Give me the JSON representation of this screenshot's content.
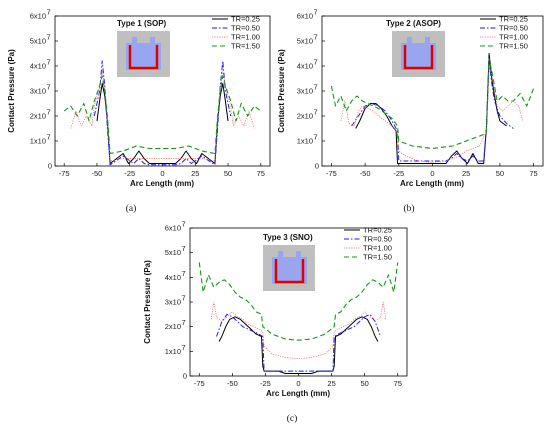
{
  "colors": {
    "TR=0.25": "#000000",
    "TR=0.50": "#1a1aff",
    "TR=1.00": "#ff5a5a",
    "TR=1.50": "#119911"
  },
  "chart_data": [
    {
      "type": "line",
      "title": "Type 1 (SOP)",
      "caption": "(a)",
      "xlabel": "Arc Length (mm)",
      "ylabel": "Contact Pressure (Pa)",
      "xlim": [
        -82,
        82
      ],
      "ylim": [
        0,
        60000000.0
      ],
      "xticks": [
        -75,
        -50,
        -25,
        0,
        25,
        50,
        75
      ],
      "yticks": [
        0,
        10000000.0,
        20000000.0,
        30000000.0,
        40000000.0,
        50000000.0,
        60000000.0
      ],
      "ytick_labels": [
        "0",
        "1x10",
        "2x10",
        "3x10",
        "4x10",
        "5x10",
        "6x10"
      ],
      "ytick_exponent": "7",
      "legend_position": "top-right",
      "series": [
        {
          "name": "TR=0.25",
          "x": [
            -50,
            -48,
            -46,
            -44,
            -42,
            -40,
            -30,
            -26,
            -22,
            -18,
            -14,
            -10,
            -6,
            0,
            6,
            10,
            14,
            18,
            22,
            26,
            30,
            40,
            42,
            44,
            46,
            48,
            50
          ],
          "y": [
            18000000.0,
            26000000.0,
            33000000.0,
            28000000.0,
            18000000.0,
            1000000.0,
            5000000.0,
            1000000.0,
            3000000.0,
            6000000.0,
            3000000.0,
            1000000.0,
            1000000.0,
            1000000.0,
            1000000.0,
            1000000.0,
            3000000.0,
            6000000.0,
            3000000.0,
            1000000.0,
            5000000.0,
            1000000.0,
            18000000.0,
            28000000.0,
            33000000.0,
            26000000.0,
            18000000.0
          ]
        },
        {
          "name": "TR=0.50",
          "x": [
            -52,
            -48,
            -46,
            -44,
            -42,
            -40,
            -30,
            -22,
            -18,
            -14,
            -10,
            0,
            10,
            14,
            18,
            22,
            30,
            40,
            42,
            44,
            46,
            48,
            52
          ],
          "y": [
            20000000.0,
            30000000.0,
            42000000.0,
            32000000.0,
            15000000.0,
            500000.0,
            4000000.0,
            1000000.0,
            3000000.0,
            1000000.0,
            500000.0,
            500000.0,
            500000.0,
            1000000.0,
            3000000.0,
            1000000.0,
            4000000.0,
            500000.0,
            15000000.0,
            32000000.0,
            42000000.0,
            30000000.0,
            20000000.0
          ]
        },
        {
          "name": "TR=1.00",
          "x": [
            -70,
            -66,
            -62,
            -58,
            -54,
            -52,
            -48,
            -46,
            -44,
            -42,
            -40,
            -30,
            -20,
            -10,
            0,
            10,
            20,
            30,
            40,
            42,
            44,
            46,
            48,
            52,
            54,
            58,
            62,
            66,
            70
          ],
          "y": [
            15000000.0,
            22000000.0,
            16000000.0,
            20000000.0,
            16000000.0,
            24000000.0,
            32000000.0,
            38000000.0,
            31000000.0,
            18000000.0,
            2000000.0,
            3000000.0,
            3000000.0,
            3000000.0,
            3000000.0,
            3000000.0,
            3000000.0,
            3000000.0,
            2000000.0,
            18000000.0,
            31000000.0,
            38000000.0,
            32000000.0,
            24000000.0,
            16000000.0,
            20000000.0,
            16000000.0,
            22000000.0,
            15000000.0
          ]
        },
        {
          "name": "TR=1.50",
          "x": [
            -75,
            -70,
            -65,
            -60,
            -56,
            -52,
            -48,
            -46,
            -44,
            -42,
            -40,
            -30,
            -20,
            -10,
            0,
            10,
            20,
            30,
            40,
            42,
            44,
            46,
            48,
            52,
            56,
            60,
            65,
            70,
            75
          ],
          "y": [
            22000000.0,
            24000000.0,
            20000000.0,
            25000000.0,
            18000000.0,
            26000000.0,
            32000000.0,
            36000000.0,
            30000000.0,
            20000000.0,
            5000000.0,
            6000000.0,
            8000000.0,
            7000000.0,
            7000000.0,
            7000000.0,
            8000000.0,
            6000000.0,
            5000000.0,
            20000000.0,
            30000000.0,
            36000000.0,
            32000000.0,
            26000000.0,
            18000000.0,
            25000000.0,
            20000000.0,
            24000000.0,
            22000000.0
          ]
        }
      ]
    },
    {
      "type": "line",
      "title": "Type 2 (ASOP)",
      "caption": "(b)",
      "xlabel": "Arc Length (mm)",
      "ylabel": "Contact Pressure (Pa)",
      "xlim": [
        -82,
        82
      ],
      "ylim": [
        0,
        60000000.0
      ],
      "xticks": [
        -75,
        -50,
        -25,
        0,
        25,
        50,
        75
      ],
      "yticks": [
        0,
        10000000.0,
        20000000.0,
        30000000.0,
        40000000.0,
        50000000.0,
        60000000.0
      ],
      "ytick_labels": [
        "0",
        "1x10",
        "2x10",
        "3x10",
        "4x10",
        "5x10",
        "6x10"
      ],
      "ytick_exponent": "7",
      "legend_position": "top-right",
      "series": [
        {
          "name": "TR=0.25",
          "x": [
            -57,
            -54,
            -50,
            -46,
            -42,
            -38,
            -34,
            -30,
            -27,
            -26,
            -10,
            0,
            10,
            14,
            18,
            22,
            26,
            30,
            34,
            38,
            40,
            42,
            44,
            46,
            48,
            50,
            55
          ],
          "y": [
            15000000.0,
            18000000.0,
            23000000.0,
            25000000.0,
            25000000.0,
            23000000.0,
            20000000.0,
            16000000.0,
            14000000.0,
            1000000.0,
            1000000.0,
            1000000.0,
            1000000.0,
            4000000.0,
            6000000.0,
            3000000.0,
            1000000.0,
            5000000.0,
            1000000.0,
            1000000.0,
            15000000.0,
            45000000.0,
            35000000.0,
            28000000.0,
            22000000.0,
            18000000.0,
            16000000.0
          ]
        },
        {
          "name": "TR=0.50",
          "x": [
            -60,
            -55,
            -50,
            -45,
            -40,
            -35,
            -30,
            -26,
            -25,
            -10,
            0,
            10,
            14,
            18,
            22,
            26,
            30,
            34,
            38,
            40,
            42,
            44,
            46,
            50,
            55,
            60
          ],
          "y": [
            16000000.0,
            20000000.0,
            24000000.0,
            25000000.0,
            24000000.0,
            22000000.0,
            18000000.0,
            14000000.0,
            2000000.0,
            2000000.0,
            2000000.0,
            2000000.0,
            3000000.0,
            5000000.0,
            3000000.0,
            2000000.0,
            4000000.0,
            2000000.0,
            2000000.0,
            15000000.0,
            42000000.0,
            33000000.0,
            26000000.0,
            20000000.0,
            17000000.0,
            15000000.0
          ]
        },
        {
          "name": "TR=1.00",
          "x": [
            -68,
            -65,
            -62,
            -58,
            -55,
            -52,
            -48,
            -44,
            -40,
            -35,
            -30,
            -26,
            -25,
            -20,
            -10,
            0,
            10,
            20,
            25,
            30,
            35,
            40,
            42,
            44,
            48,
            52,
            56,
            60,
            64,
            67
          ],
          "y": [
            18000000.0,
            26000000.0,
            17000000.0,
            16000000.0,
            22000000.0,
            24000000.0,
            23000000.0,
            22000000.0,
            20000000.0,
            18000000.0,
            16000000.0,
            13000000.0,
            6000000.0,
            4000000.0,
            2000000.0,
            1500000.0,
            2000000.0,
            4000000.0,
            6000000.0,
            7000000.0,
            8000000.0,
            14000000.0,
            40000000.0,
            36000000.0,
            24000000.0,
            22000000.0,
            24000000.0,
            26000000.0,
            24000000.0,
            18000000.0
          ]
        },
        {
          "name": "TR=1.50",
          "x": [
            -75,
            -72,
            -68,
            -64,
            -60,
            -56,
            -52,
            -48,
            -44,
            -40,
            -35,
            -30,
            -26,
            -25,
            -15,
            0,
            15,
            25,
            30,
            35,
            40,
            42,
            44,
            48,
            52,
            56,
            60,
            65,
            70,
            75
          ],
          "y": [
            32000000.0,
            24000000.0,
            28000000.0,
            22000000.0,
            26000000.0,
            28000000.0,
            26000000.0,
            25000000.0,
            24000000.0,
            23000000.0,
            21000000.0,
            19000000.0,
            16000000.0,
            10000000.0,
            8000000.0,
            7000000.0,
            8000000.0,
            10000000.0,
            11000000.0,
            12000000.0,
            13000000.0,
            43000000.0,
            38000000.0,
            26000000.0,
            28000000.0,
            26000000.0,
            26000000.0,
            29000000.0,
            24000000.0,
            31000000.0
          ]
        }
      ]
    },
    {
      "type": "line",
      "title": "Type 3 (SNO)",
      "caption": "(c)",
      "xlabel": "Arc Length (mm)",
      "ylabel": "Contact Pressure (Pa)",
      "xlim": [
        -82,
        82
      ],
      "ylim": [
        0,
        60000000.0
      ],
      "xticks": [
        -75,
        -50,
        -25,
        0,
        25,
        50,
        75
      ],
      "yticks": [
        0,
        10000000.0,
        20000000.0,
        30000000.0,
        40000000.0,
        50000000.0,
        60000000.0
      ],
      "ytick_labels": [
        "0",
        "1x10",
        "2x10",
        "3x10",
        "4x10",
        "5x10",
        "6x10"
      ],
      "ytick_exponent": "7",
      "legend_position": "top-right",
      "series": [
        {
          "name": "TR=0.25",
          "x": [
            -60,
            -58,
            -55,
            -52,
            -48,
            -44,
            -40,
            -36,
            -32,
            -28,
            -27,
            -26,
            -15,
            -10,
            -5,
            0,
            5,
            10,
            15,
            26,
            27,
            28,
            32,
            36,
            40,
            44,
            48,
            52,
            55,
            58,
            60
          ],
          "y": [
            14000000.0,
            16000000.0,
            20000000.0,
            23000000.0,
            24000000.0,
            23000000.0,
            21000000.0,
            19000000.0,
            17000000.0,
            16000000.0,
            4000000.0,
            2000000.0,
            2000000.0,
            1000000.0,
            1000000.0,
            1000000.0,
            1000000.0,
            1000000.0,
            2000000.0,
            2000000.0,
            4000000.0,
            16000000.0,
            17000000.0,
            19000000.0,
            21000000.0,
            23000000.0,
            24000000.0,
            23000000.0,
            20000000.0,
            16000000.0,
            14000000.0
          ]
        },
        {
          "name": "TR=0.50",
          "x": [
            -62,
            -58,
            -54,
            -50,
            -46,
            -42,
            -38,
            -34,
            -30,
            -27,
            -26,
            -10,
            0,
            10,
            26,
            27,
            30,
            34,
            38,
            42,
            46,
            50,
            54,
            58,
            62
          ],
          "y": [
            16000000.0,
            22000000.0,
            25000000.0,
            24000000.0,
            22000000.0,
            20000000.0,
            19000000.0,
            18000000.0,
            17000000.0,
            16000000.0,
            2000000.0,
            2000000.0,
            2000000.0,
            2000000.0,
            2000000.0,
            16000000.0,
            17000000.0,
            18000000.0,
            19000000.0,
            20000000.0,
            22000000.0,
            24000000.0,
            25000000.0,
            22000000.0,
            16000000.0
          ]
        },
        {
          "name": "TR=1.00",
          "x": [
            -66,
            -64,
            -62,
            -58,
            -54,
            -50,
            -46,
            -42,
            -38,
            -34,
            -30,
            -27,
            -26,
            -20,
            -10,
            0,
            10,
            20,
            26,
            27,
            30,
            34,
            38,
            42,
            46,
            50,
            54,
            58,
            62,
            64,
            66
          ],
          "y": [
            23000000.0,
            30000000.0,
            24000000.0,
            22000000.0,
            24000000.0,
            26000000.0,
            24000000.0,
            23000000.0,
            21000000.0,
            20000000.0,
            19000000.0,
            18000000.0,
            12000000.0,
            9000000.0,
            7500000.0,
            7000000.0,
            7500000.0,
            9000000.0,
            12000000.0,
            18000000.0,
            19000000.0,
            20000000.0,
            21000000.0,
            23000000.0,
            24000000.0,
            26000000.0,
            24000000.0,
            22000000.0,
            24000000.0,
            30000000.0,
            23000000.0
          ]
        },
        {
          "name": "TR=1.50",
          "x": [
            -75,
            -72,
            -68,
            -64,
            -60,
            -56,
            -52,
            -48,
            -44,
            -40,
            -36,
            -32,
            -28,
            -27,
            -20,
            -10,
            0,
            10,
            20,
            27,
            28,
            32,
            36,
            40,
            44,
            48,
            52,
            56,
            60,
            64,
            68,
            72,
            75
          ],
          "y": [
            46000000.0,
            34000000.0,
            41000000.0,
            36000000.0,
            38000000.0,
            39000000.0,
            37000000.0,
            34000000.0,
            32000000.0,
            31000000.0,
            29000000.0,
            26000000.0,
            25000000.0,
            20000000.0,
            17000000.0,
            15000000.0,
            14500000.0,
            15000000.0,
            17000000.0,
            20000000.0,
            25000000.0,
            26000000.0,
            29000000.0,
            31000000.0,
            32000000.0,
            34000000.0,
            37000000.0,
            39000000.0,
            38000000.0,
            36000000.0,
            41000000.0,
            34000000.0,
            46000000.0
          ]
        }
      ]
    }
  ]
}
